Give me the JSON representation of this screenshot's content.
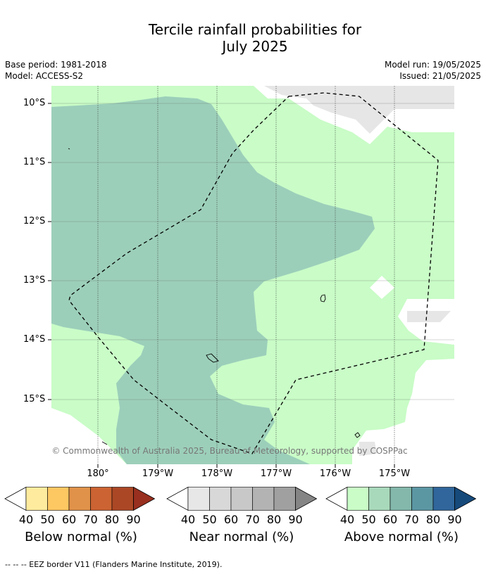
{
  "title_line1": "Tercile rainfall probabilities for",
  "title_line2": "July 2025",
  "base_period": "Base period: 1981-2018",
  "model": "Model: ACCESS-S2",
  "model_run": "Model run: 19/05/2025",
  "issued": "Issued: 21/05/2025",
  "copyright": "© Commonwealth of Australia 2025, Bureau of Meteorology, supported by COSPPac",
  "lat_labels": [
    "10°S",
    "11°S",
    "12°S",
    "13°S",
    "14°S",
    "15°S"
  ],
  "lon_labels": [
    "180°",
    "179°W",
    "178°W",
    "177°W",
    "176°W",
    "175°W"
  ],
  "colorbars": [
    {
      "title": "Below normal (%)",
      "ticks": [
        "40",
        "50",
        "60",
        "70",
        "80",
        "90"
      ],
      "colors": [
        "#ffffff",
        "#feeb9d",
        "#fdc762",
        "#e0924a",
        "#cc6332",
        "#ab4725",
        "#982f1f"
      ]
    },
    {
      "title": "Near normal (%)",
      "ticks": [
        "40",
        "50",
        "60",
        "70",
        "80",
        "90"
      ],
      "colors": [
        "#ffffff",
        "#e7e7e7",
        "#d8d8d8",
        "#c8c8c8",
        "#b3b3b3",
        "#a0a0a0",
        "#858585"
      ]
    },
    {
      "title": "Above normal (%)",
      "ticks": [
        "40",
        "50",
        "60",
        "70",
        "80",
        "90"
      ],
      "colors": [
        "#ffffff",
        "#c9fcc7",
        "#a8d9bb",
        "#83b8ab",
        "#5b96a3",
        "#30669b",
        "#164a7b"
      ]
    }
  ],
  "footnote": "--  --  -- EEZ border V11 (Flanders Marine Institute, 2019).",
  "colors": {
    "above_50": "#c9fcc7",
    "above_60": "#9ccfba",
    "near_50": "#e6e6e6",
    "background": "#ffffff"
  }
}
